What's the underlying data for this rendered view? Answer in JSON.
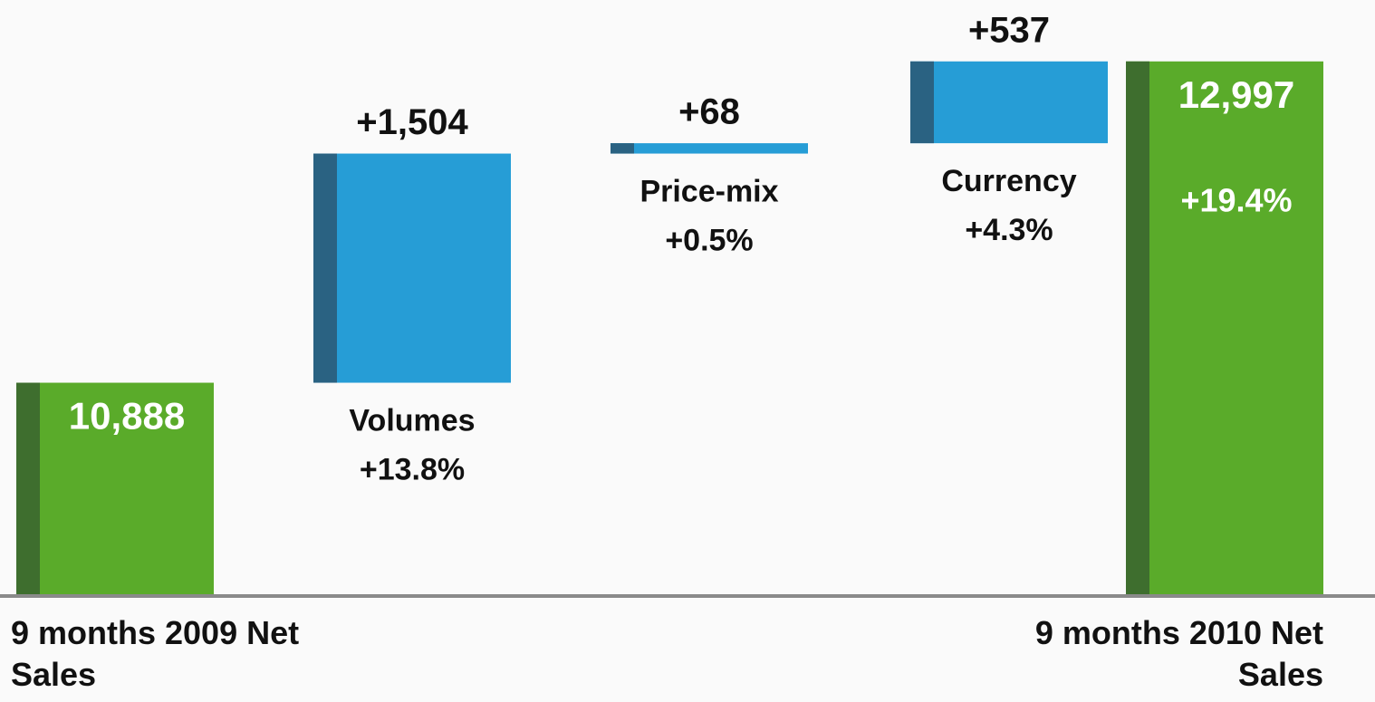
{
  "chart_data": {
    "type": "waterfall",
    "categories": [
      "9 months 2009 Net Sales",
      "Volumes",
      "Price-mix",
      "Currency",
      "9 months 2010 Net Sales"
    ],
    "measures": [
      "absolute",
      "relative",
      "relative",
      "relative",
      "total"
    ],
    "values": [
      10888,
      1504,
      68,
      537,
      12997
    ],
    "value_labels": [
      "10,888",
      "+1,504",
      "+68",
      "+537",
      "12,997"
    ],
    "percent_labels": [
      null,
      "+13.8%",
      "+0.5%",
      "+4.3%",
      "+19.4%"
    ],
    "colors": {
      "total": "#5aab2a",
      "total_shade": "#3e6e2e",
      "delta": "#269dd6",
      "delta_shade": "#2a6282"
    },
    "ylim": [
      9500,
      13400
    ]
  }
}
